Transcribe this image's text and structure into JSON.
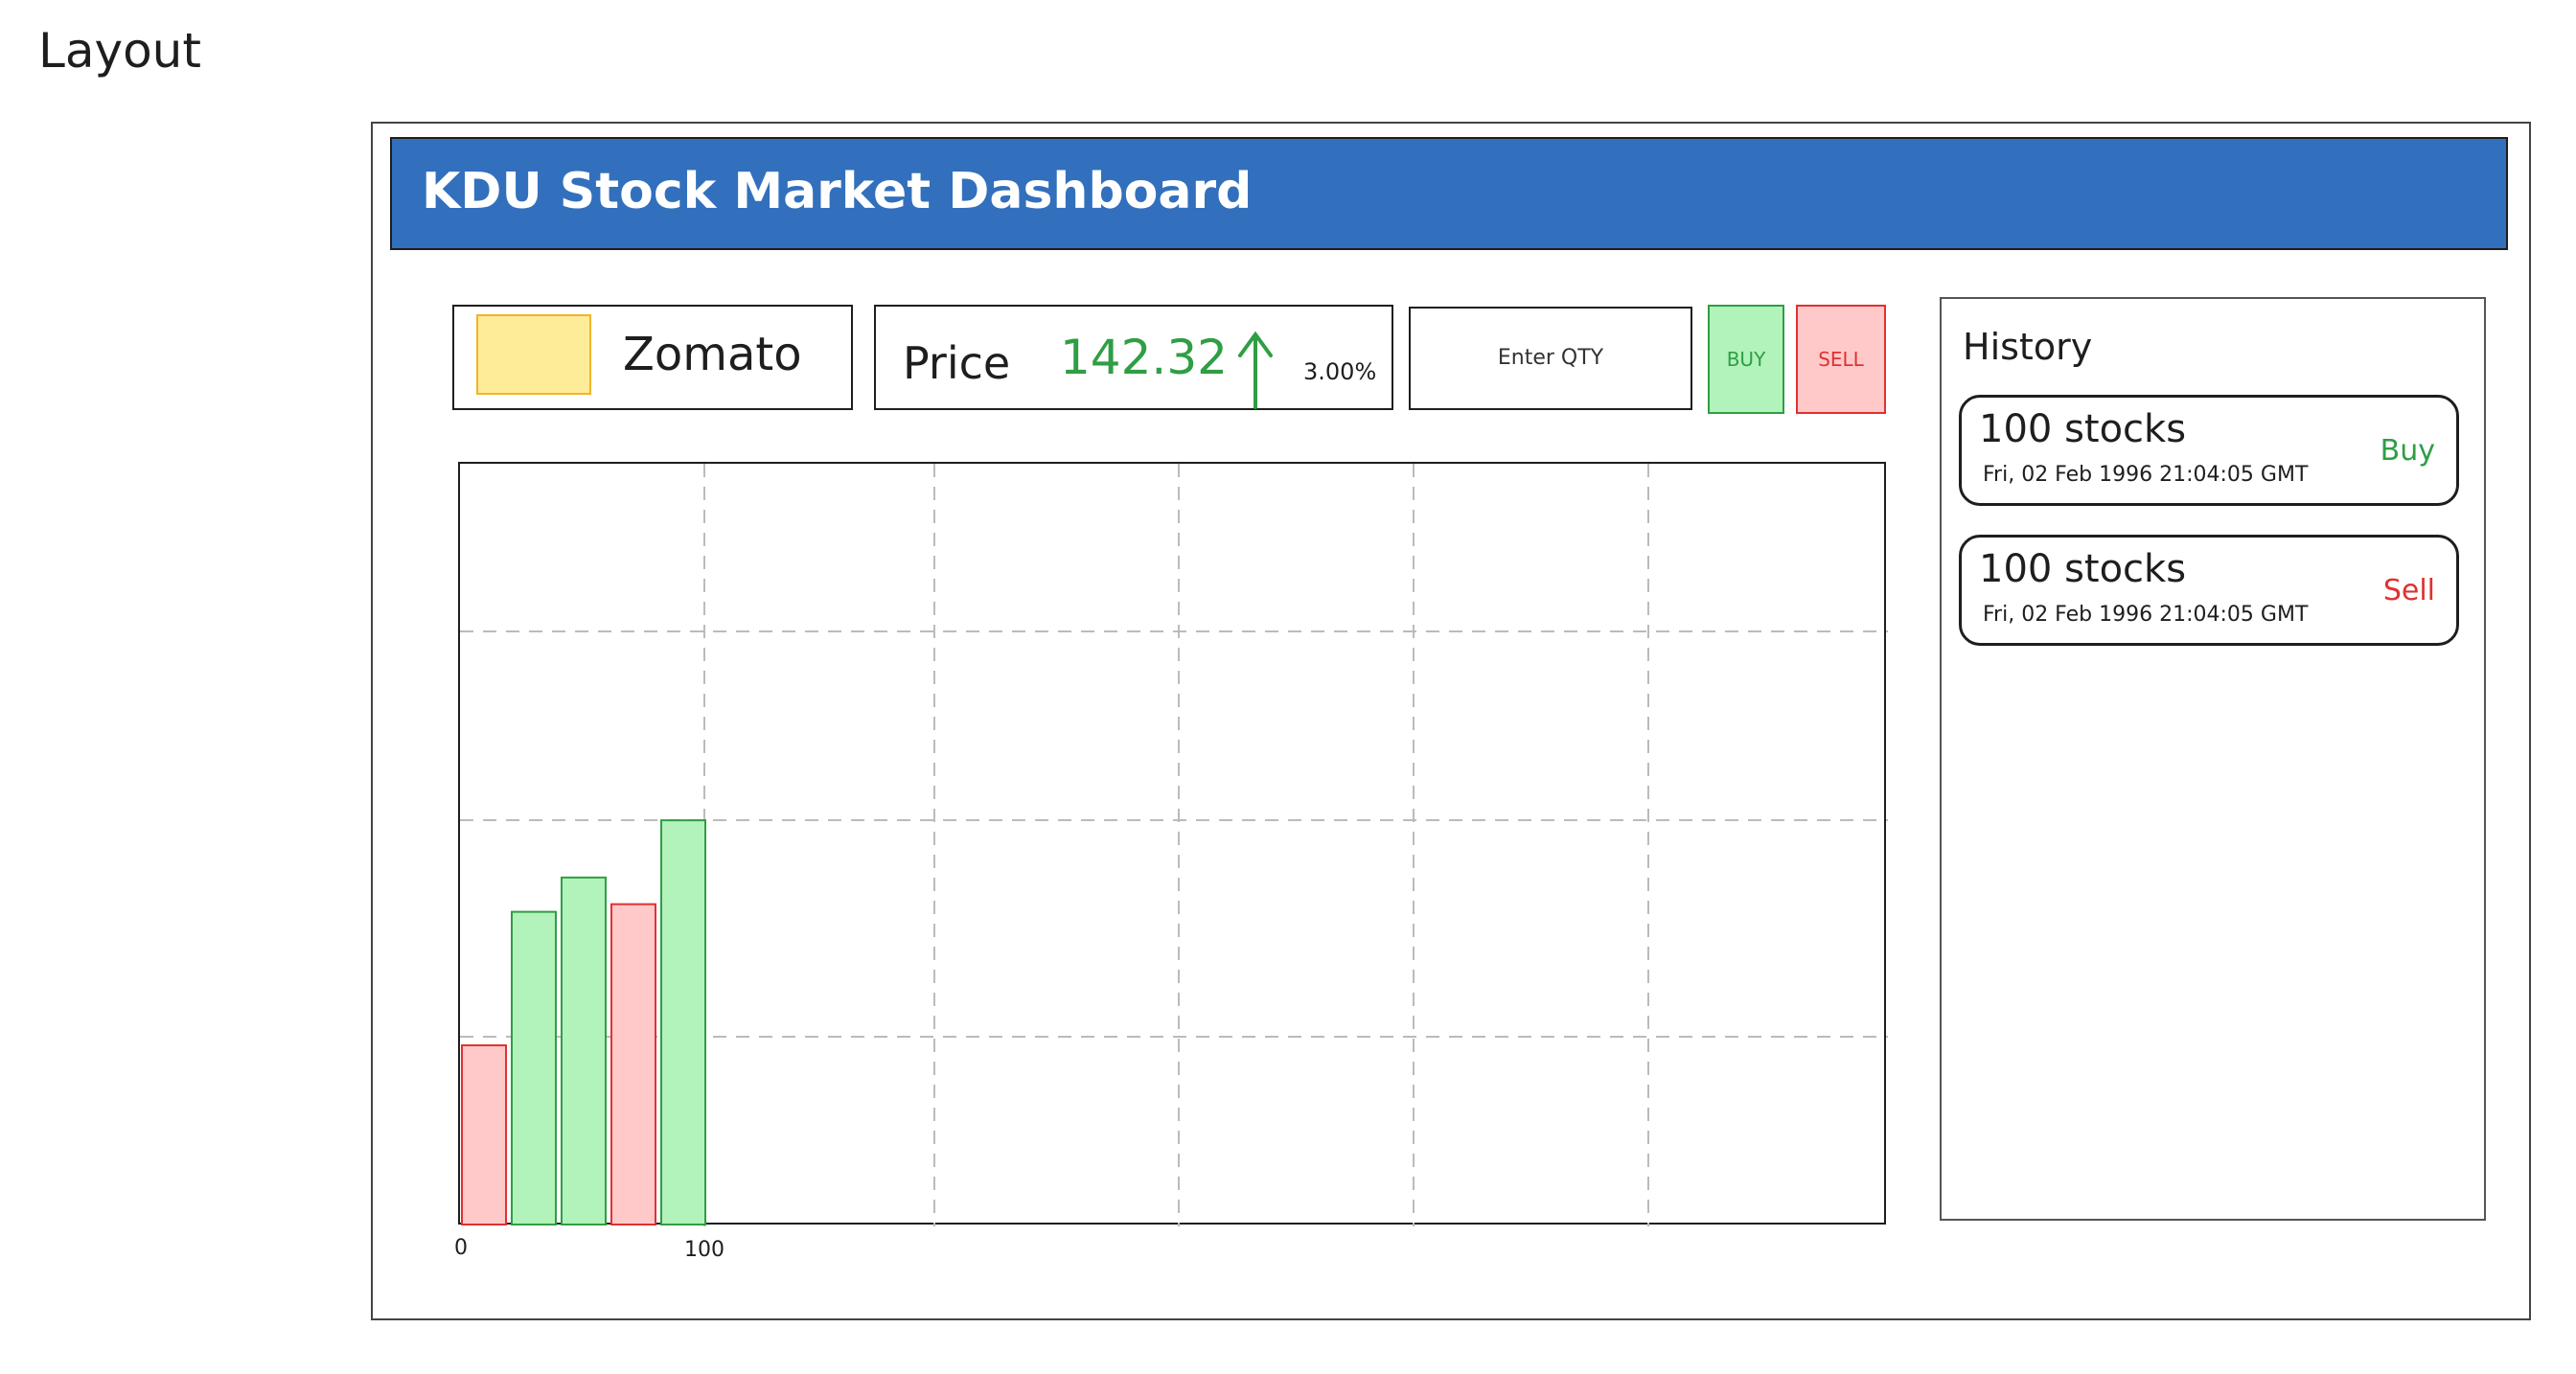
{
  "page": {
    "label": "Layout"
  },
  "header": {
    "title": "KDU Stock Market Dashboard",
    "background": "#3270bd"
  },
  "stock": {
    "name": "Zomato",
    "swatch_color": "#ffec99"
  },
  "price": {
    "label": "Price",
    "value": "142.32",
    "change": "3.00%",
    "direction": "up",
    "color": "#2f9e44"
  },
  "trade": {
    "qty_placeholder": "Enter QTY",
    "buy_label": "BUY",
    "sell_label": "SELL"
  },
  "chart_data": {
    "type": "bar",
    "x_ticks": [
      "0",
      "100"
    ],
    "bar_heights_fraction": [
      0.235,
      0.41,
      0.455,
      0.42,
      0.53
    ],
    "bar_kinds": [
      "sell",
      "buy",
      "buy",
      "sell",
      "buy"
    ],
    "colors": {
      "buy": "#b2f2bb",
      "sell": "#ffc9c9",
      "buy_stroke": "#2f9e44",
      "sell_stroke": "#e03131"
    },
    "grid": true
  },
  "history": {
    "title": "History",
    "items": [
      {
        "qty": "100 stocks",
        "time": "Fri, 02 Feb 1996 21:04:05 GMT",
        "type": "Buy"
      },
      {
        "qty": "100 stocks",
        "time": "Fri, 02 Feb 1996 21:04:05 GMT",
        "type": "Sell"
      }
    ]
  }
}
